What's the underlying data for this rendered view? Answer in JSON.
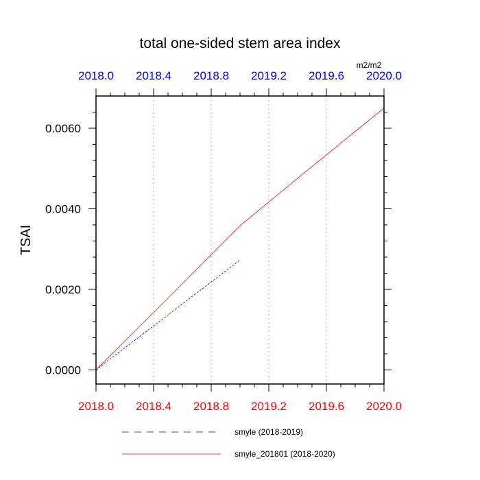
{
  "chart_data": {
    "type": "line",
    "title": "total one-sided stem area index",
    "units": "m2/m2",
    "ylabel": "TSAI",
    "xlabel": "",
    "xlim": [
      2018.0,
      2020.0
    ],
    "ylim": [
      -0.00035,
      0.0068
    ],
    "x_ticks": [
      2018.0,
      2018.4,
      2018.8,
      2019.2,
      2019.6,
      2020.0
    ],
    "x_tick_labels_top": [
      "2018.0",
      "2018.4",
      "2018.8",
      "2019.2",
      "2019.6",
      "2020.0"
    ],
    "x_tick_labels_bottom": [
      "2018.0",
      "2018.4",
      "2018.8",
      "2019.2",
      "2019.6",
      "2020.0"
    ],
    "y_ticks": [
      0.0,
      0.002,
      0.004,
      0.006
    ],
    "y_tick_labels": [
      "0.0000",
      "0.0020",
      "0.0040",
      "0.0060"
    ],
    "grid": "vertical dotted",
    "legend_position": "bottom",
    "series": [
      {
        "name": "smyle (2018-2019)",
        "color": "#0000ff",
        "style": "dashed",
        "x": [
          2018.0,
          2019.0
        ],
        "y": [
          0.0,
          0.00273
        ]
      },
      {
        "name": "smyle_201801 (2018-2020)",
        "color": "#ff0000",
        "style": "solid",
        "x": [
          2018.0,
          2018.5,
          2019.0,
          2019.5,
          2020.0
        ],
        "y": [
          0.0,
          0.00178,
          0.00358,
          0.00505,
          0.0065
        ]
      }
    ],
    "colors": {
      "top_axis_labels": "#0000ff",
      "bottom_axis_labels": "#ff0000",
      "grid": "#b0b0b0",
      "frame": "#000000"
    }
  }
}
